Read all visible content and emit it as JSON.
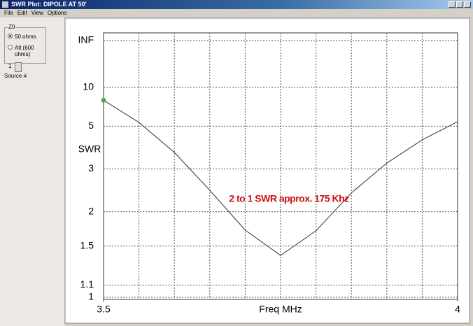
{
  "window": {
    "title": "SWR Plot: DIPOLE AT 50'",
    "menu": [
      "File",
      "Edit",
      "View",
      "Options"
    ]
  },
  "panel": {
    "group": "Z0",
    "options": [
      "50 ohms",
      "Alt (600 ohms)"
    ],
    "source": "1",
    "source_label": "Source #"
  },
  "chart_data": {
    "type": "line",
    "ylabel": "SWR",
    "xlabel": "Freq MHz",
    "annotation": "2 to 1 SWR approx. 175 Khz",
    "x": [
      3.5,
      3.55,
      3.6,
      3.65,
      3.7,
      3.75,
      3.8,
      3.85,
      3.9,
      3.95,
      4.0
    ],
    "values": [
      7.6,
      5.27,
      3.59,
      2.43,
      1.71,
      1.39,
      1.7,
      2.37,
      3.19,
      4.17,
      5.33
    ],
    "color": "#333333",
    "marker_color": "#5aa05a",
    "annotation_color": "#cc1111",
    "xlim": [
      3.5,
      4
    ],
    "xticks": [
      3.5,
      4
    ],
    "xgrid": [
      3.55,
      3.6,
      3.65,
      3.7,
      3.75,
      3.8,
      3.85,
      3.9,
      3.95
    ],
    "yscale": "reflection",
    "ylim": [
      1,
      "Infinity"
    ],
    "yticks": [
      1,
      1.1,
      1.5,
      2,
      3,
      5,
      10,
      {
        "value": "Infinity",
        "label": "INF"
      }
    ],
    "grid": true
  }
}
